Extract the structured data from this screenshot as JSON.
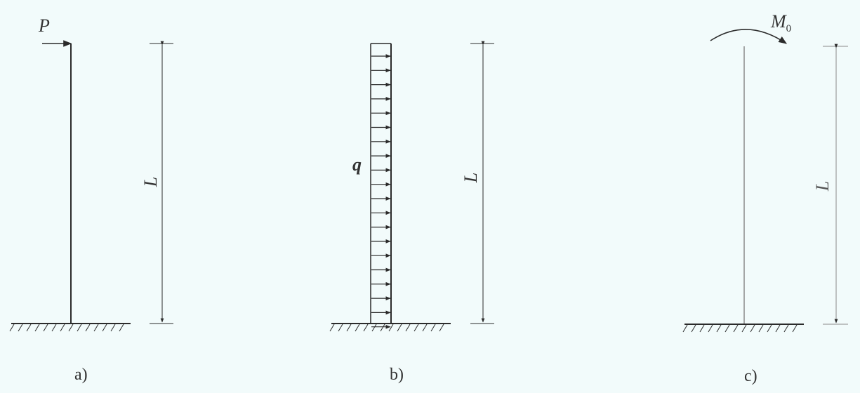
{
  "figures": [
    {
      "caption": "a)",
      "load_label": "P",
      "length_label": "L"
    },
    {
      "caption": "b)",
      "load_label": "q",
      "length_label": "L"
    },
    {
      "caption": "c)",
      "load_label_main": "M",
      "load_label_sub": "0",
      "length_label": "L"
    }
  ],
  "colors": {
    "background": "#f2fbfb",
    "line": "#2b2b2b",
    "faint_line": "#8a8a8a"
  }
}
